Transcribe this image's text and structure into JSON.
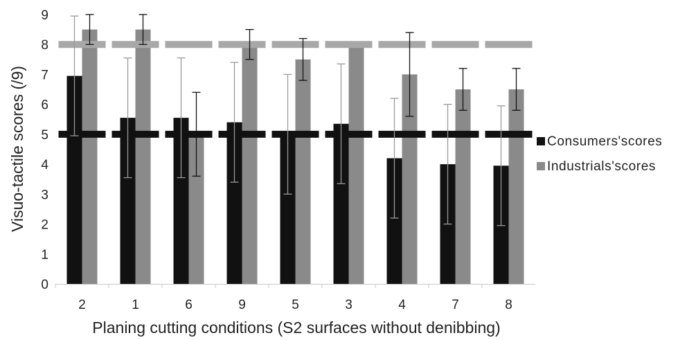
{
  "chart_data": {
    "type": "bar",
    "title": "",
    "xlabel": "Planing cutting conditions (S2 surfaces without denibbing)",
    "ylabel": "Visuo-tactile scores (/9)",
    "ylim": [
      0,
      9
    ],
    "yticks": [
      "0",
      "1",
      "2",
      "3",
      "4",
      "5",
      "6",
      "7",
      "8",
      "9"
    ],
    "grid": false,
    "legend_position": "right",
    "categories": [
      "2",
      "1",
      "6",
      "9",
      "5",
      "3",
      "4",
      "7",
      "8"
    ],
    "series": [
      {
        "name": "Consumers'scores",
        "color": "#111111",
        "values": [
          6.95,
          5.55,
          5.55,
          5.4,
          5.0,
          5.35,
          4.2,
          4.0,
          3.95
        ],
        "error": [
          2.0,
          2.0,
          2.0,
          2.0,
          2.0,
          2.0,
          2.0,
          2.0,
          2.0
        ],
        "error_color": "#9a9a9a"
      },
      {
        "name": "Industrials'scores",
        "color": "#8a8a8a",
        "values": [
          8.5,
          8.5,
          5.0,
          8.0,
          7.5,
          8.0,
          7.0,
          6.5,
          6.5
        ],
        "error": [
          0.5,
          0.5,
          1.4,
          0.5,
          0.7,
          0,
          1.4,
          0.7,
          0.7
        ],
        "error_color": "#111111"
      }
    ],
    "reference_lines": [
      {
        "value": 5,
        "color": "#111111",
        "style": "solid"
      },
      {
        "value": 8,
        "color": "#a8a8a8",
        "style": "dashed"
      }
    ]
  }
}
